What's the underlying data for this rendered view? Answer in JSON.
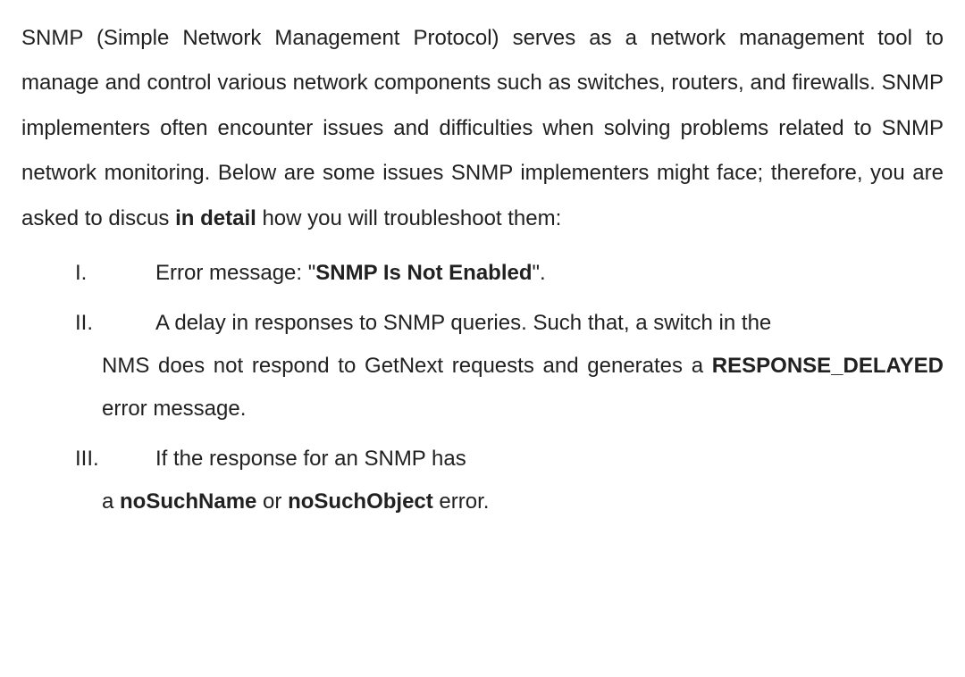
{
  "colors": {
    "text": "#212121",
    "background": "#ffffff"
  },
  "typography": {
    "font_size_pt": 18,
    "line_height": 2.0,
    "font_family": "Arial"
  },
  "intro": {
    "part1": "SNMP (Simple Network Management Protocol) serves as a network management tool to manage and control various network components such as switches, routers, and firewalls. SNMP implementers often encounter issues and difficulties when solving problems related to SNMP network monitoring. Below are some issues SNMP implementers might face; therefore, you are asked to discus ",
    "bold": "in detail",
    "part2": "  how you will troubleshoot them:"
  },
  "items": [
    {
      "marker": "I.",
      "text_before": "Error message: \"",
      "bold": "SNMP Is Not Enabled",
      "text_after": "\"."
    },
    {
      "marker": "II.",
      "line1": "A delay in responses to SNMP queries. Such that, a switch in the",
      "cont_before": "NMS does not respond to GetNext requests and generates a ",
      "cont_bold": "RESPONSE_DELAYED",
      "cont_after": " error message."
    },
    {
      "marker": "III.",
      "line1": "If the response for an SNMP has",
      "cont_before": "a ",
      "cont_bold1": "noSuchName",
      "cont_mid": " or ",
      "cont_bold2": "noSuchObject",
      "cont_after": " error."
    }
  ]
}
